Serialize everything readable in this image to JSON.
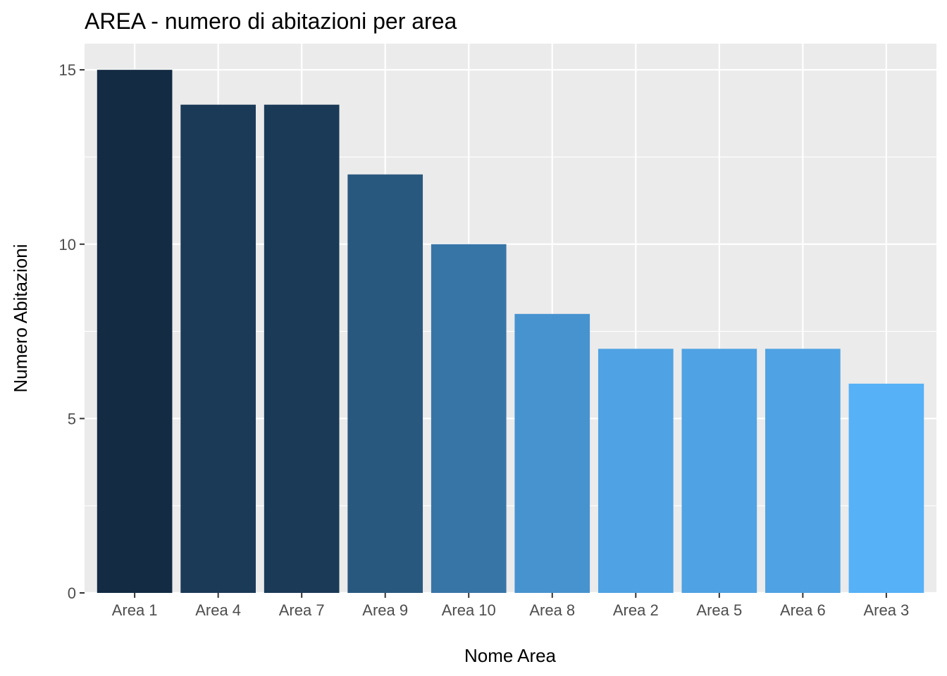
{
  "chart_data": {
    "type": "bar",
    "title": "AREA - numero di abitazioni per area",
    "xlabel": "Nome Area",
    "ylabel": "Numero Abitazioni",
    "categories": [
      "Area 1",
      "Area 4",
      "Area 7",
      "Area 9",
      "Area 10",
      "Area 8",
      "Area 2",
      "Area 5",
      "Area 6",
      "Area 3"
    ],
    "values": [
      15,
      14,
      14,
      12,
      10,
      8,
      7,
      7,
      7,
      6
    ],
    "ylim": [
      0,
      15.75
    ],
    "yticks": [
      0,
      5,
      10,
      15
    ],
    "grid": true,
    "legend": "none",
    "colors": {
      "panel_background": "#EBEBEB",
      "gridline": "#FFFFFF",
      "bar_low": "#56B1F7",
      "bar_high": "#132B43"
    }
  }
}
